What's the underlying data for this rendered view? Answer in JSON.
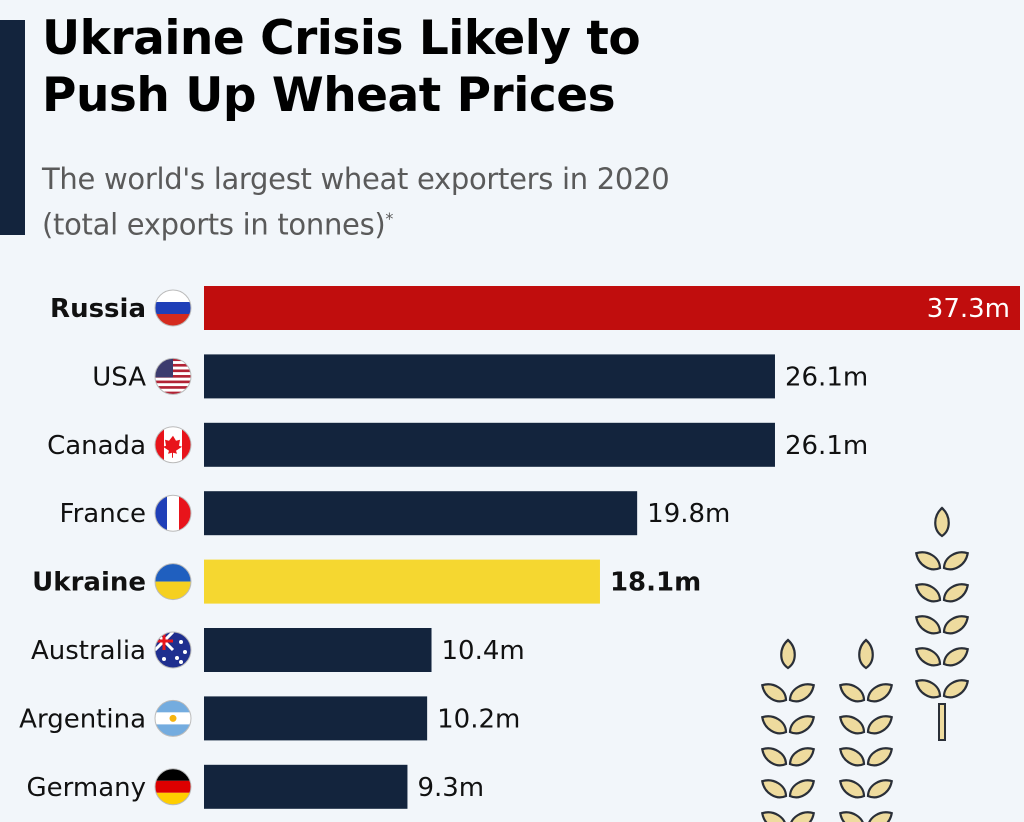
{
  "title_line1": "Ukraine Crisis Likely to",
  "title_line2": "Push Up Wheat Prices",
  "subtitle_line1": "The world's largest wheat exporters in 2020",
  "subtitle_line2": "(total exports in tonnes)",
  "subtitle_footnote_mark": "*",
  "colors": {
    "default_bar": "#13243d",
    "russia": "#c00d0d",
    "ukraine": "#f5d730",
    "wheat_fill": "#eedb9e",
    "accent": "#13243d"
  },
  "chart_data": {
    "type": "bar",
    "orientation": "horizontal",
    "title": "Ukraine Crisis Likely to Push Up Wheat Prices",
    "subtitle": "The world's largest wheat exporters in 2020 (total exports in tonnes)*",
    "unit": "million tonnes",
    "categories": [
      "Russia",
      "USA",
      "Canada",
      "France",
      "Ukraine",
      "Australia",
      "Argentina",
      "Germany"
    ],
    "values": [
      37.3,
      26.1,
      26.1,
      19.8,
      18.1,
      10.4,
      10.2,
      9.3
    ],
    "data_labels": [
      "37.3m",
      "26.1m",
      "26.1m",
      "19.8m",
      "18.1m",
      "10.4m",
      "10.2m",
      "9.3m"
    ],
    "highlighted": {
      "Russia": "red",
      "Ukraine": "yellow"
    },
    "flags": [
      "russia-flag",
      "usa-flag",
      "canada-flag",
      "france-flag",
      "ukraine-flag",
      "australia-flag",
      "argentina-flag",
      "germany-flag"
    ],
    "xlim": [
      0,
      37.3
    ],
    "grid": false,
    "axes_visible": false
  }
}
